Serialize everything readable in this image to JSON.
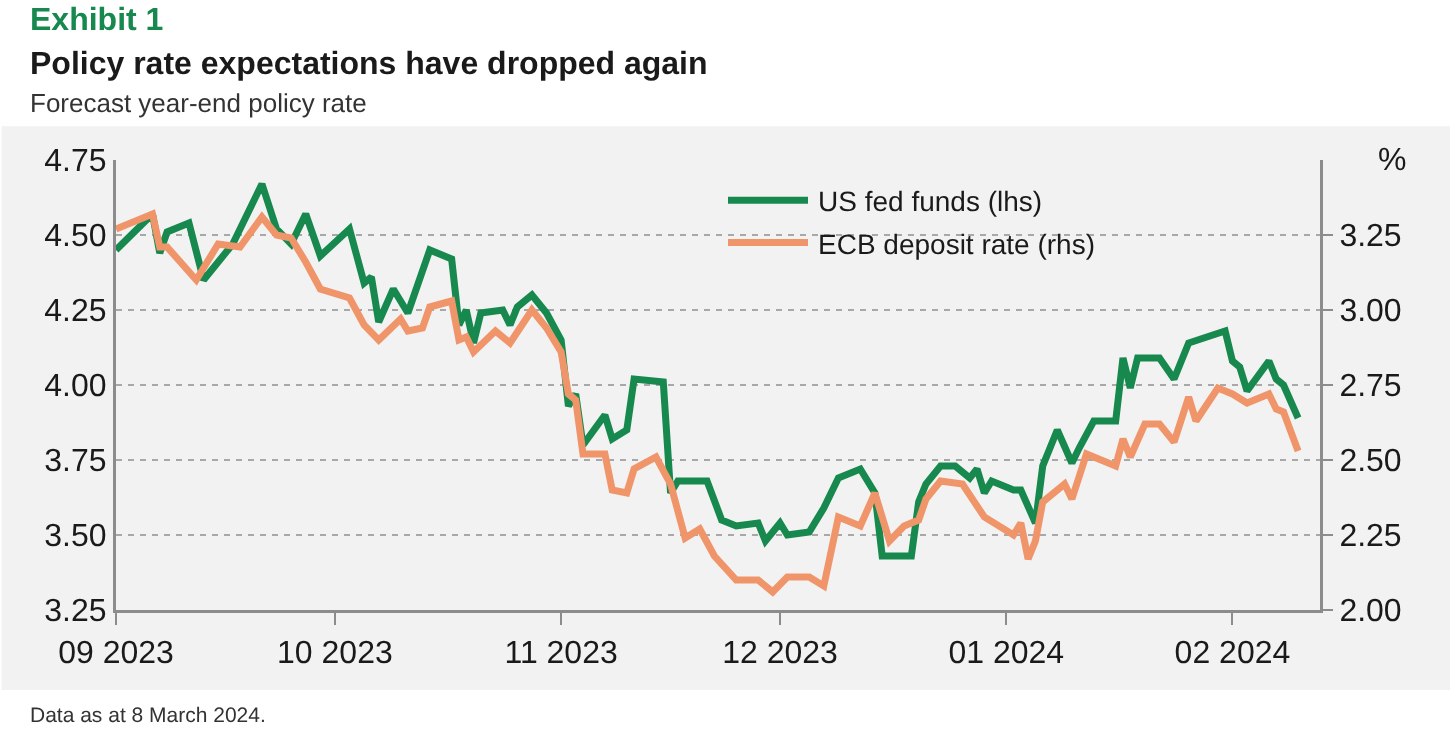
{
  "chart_data": {
    "type": "line",
    "title": "Policy rate expectations have dropped again",
    "subtitle": "Forecast year-end policy rate",
    "y2label": "%",
    "annotations": [
      "Exhibit 1",
      "Data as at 8 March 2024."
    ],
    "xlim": [
      "2023-09-01",
      "2024-02-13"
    ],
    "xticks": [
      {
        "value": "2023-09-01",
        "label": "09 2023"
      },
      {
        "value": "2023-10-01",
        "label": "10 2023"
      },
      {
        "value": "2023-11-01",
        "label": "11 2023"
      },
      {
        "value": "2023-12-01",
        "label": "12 2023"
      },
      {
        "value": "2024-01-01",
        "label": "01 2024"
      },
      {
        "value": "2024-02-01",
        "label": "02 2024"
      }
    ],
    "ylim": [
      3.25,
      4.75
    ],
    "yticks": [
      {
        "value": 3.25,
        "label": "3.25"
      },
      {
        "value": 3.5,
        "label": "3.50"
      },
      {
        "value": 3.75,
        "label": "3.75"
      },
      {
        "value": 4,
        "label": "4.00"
      },
      {
        "value": 4.25,
        "label": "4.25"
      },
      {
        "value": 4.5,
        "label": "4.50"
      },
      {
        "value": 4.75,
        "label": "4.75"
      }
    ],
    "y2lim": [
      2.0,
      3.5
    ],
    "y2ticks": [
      {
        "value": 2,
        "label": "2.00"
      },
      {
        "value": 2.25,
        "label": "2.25"
      },
      {
        "value": 2.5,
        "label": "2.50"
      },
      {
        "value": 2.75,
        "label": "2.75"
      },
      {
        "value": 3,
        "label": "3.00"
      },
      {
        "value": 3.25,
        "label": "3.25"
      }
    ],
    "grid": "y",
    "legend": "top",
    "line_style": "solid",
    "marker": "none",
    "series": [
      {
        "name": "US fed funds (lhs)",
        "color": "#17894f",
        "x": [
          "2023-09-01",
          "2023-09-06",
          "2023-09-07",
          "2023-09-08",
          "2023-09-11",
          "2023-09-13",
          "2023-09-17",
          "2023-09-18",
          "2023-09-21",
          "2023-09-23",
          "2023-09-25",
          "2023-09-27",
          "2023-09-29",
          "2023-10-03",
          "2023-10-05",
          "2023-10-06",
          "2023-10-07",
          "2023-10-09",
          "2023-10-11",
          "2023-10-14",
          "2023-10-17",
          "2023-10-18",
          "2023-10-19",
          "2023-10-20",
          "2023-10-21",
          "2023-10-24",
          "2023-10-25",
          "2023-10-26",
          "2023-10-28",
          "2023-10-30",
          "2023-11-01",
          "2023-11-02",
          "2023-11-03",
          "2023-11-04",
          "2023-11-07",
          "2023-11-08",
          "2023-11-10",
          "2023-11-11",
          "2023-11-15",
          "2023-11-16",
          "2023-11-17",
          "2023-11-21",
          "2023-11-23",
          "2023-11-25",
          "2023-11-28",
          "2023-11-29",
          "2023-12-01",
          "2023-12-02",
          "2023-12-05",
          "2023-12-07",
          "2023-12-09",
          "2023-12-12",
          "2023-12-14",
          "2023-12-15",
          "2023-12-19",
          "2023-12-20",
          "2023-12-21",
          "2023-12-23",
          "2023-12-25",
          "2023-12-27",
          "2023-12-28",
          "2023-12-29",
          "2023-12-30",
          "2024-01-02",
          "2024-01-03",
          "2024-01-05",
          "2024-01-06",
          "2024-01-08",
          "2024-01-10",
          "2024-01-11",
          "2024-01-13",
          "2024-01-16",
          "2024-01-17",
          "2024-01-18",
          "2024-01-19",
          "2024-01-22",
          "2024-01-24",
          "2024-01-26",
          "2024-01-31",
          "2024-02-01",
          "2024-02-02",
          "2024-02-03",
          "2024-02-06",
          "2024-02-07",
          "2024-02-08",
          "2024-02-10"
        ],
        "values": [
          4.45,
          4.57,
          4.44,
          4.51,
          4.54,
          4.35,
          4.47,
          4.52,
          4.67,
          4.52,
          4.47,
          4.57,
          4.43,
          4.52,
          4.34,
          4.36,
          4.21,
          4.32,
          4.24,
          4.45,
          4.42,
          4.2,
          4.25,
          4.14,
          4.24,
          4.25,
          4.2,
          4.26,
          4.3,
          4.24,
          4.15,
          3.93,
          3.97,
          3.8,
          3.9,
          3.82,
          3.85,
          4.02,
          4.01,
          3.64,
          3.68,
          3.68,
          3.55,
          3.53,
          3.54,
          3.48,
          3.54,
          3.5,
          3.51,
          3.59,
          3.69,
          3.72,
          3.64,
          3.43,
          3.43,
          3.61,
          3.67,
          3.73,
          3.73,
          3.69,
          3.72,
          3.64,
          3.68,
          3.65,
          3.65,
          3.54,
          3.73,
          3.85,
          3.74,
          3.79,
          3.88,
          3.88,
          4.09,
          3.99,
          4.09,
          4.09,
          4.02,
          4.14,
          4.18,
          4.08,
          4.06,
          3.98,
          4.08,
          4.02,
          4.0,
          3.89
        ]
      },
      {
        "name": "ECB deposit rate (rhs)",
        "color": "#f0956a",
        "axis": "y2",
        "x": [
          "2023-09-01",
          "2023-09-06",
          "2023-09-07",
          "2023-09-08",
          "2023-09-12",
          "2023-09-15",
          "2023-09-18",
          "2023-09-21",
          "2023-09-23",
          "2023-09-25",
          "2023-09-27",
          "2023-09-29",
          "2023-10-03",
          "2023-10-05",
          "2023-10-07",
          "2023-10-10",
          "2023-10-11",
          "2023-10-13",
          "2023-10-14",
          "2023-10-17",
          "2023-10-18",
          "2023-10-19",
          "2023-10-20",
          "2023-10-23",
          "2023-10-25",
          "2023-10-28",
          "2023-10-30",
          "2023-11-01",
          "2023-11-02",
          "2023-11-03",
          "2023-11-04",
          "2023-11-07",
          "2023-11-08",
          "2023-11-10",
          "2023-11-11",
          "2023-11-14",
          "2023-11-16",
          "2023-11-18",
          "2023-11-20",
          "2023-11-22",
          "2023-11-25",
          "2023-11-28",
          "2023-11-30",
          "2023-12-02",
          "2023-12-05",
          "2023-12-07",
          "2023-12-09",
          "2023-12-12",
          "2023-12-14",
          "2023-12-16",
          "2023-12-18",
          "2023-12-20",
          "2023-12-21",
          "2023-12-23",
          "2023-12-26",
          "2023-12-29",
          "2024-01-02",
          "2024-01-03",
          "2024-01-04",
          "2024-01-05",
          "2024-01-06",
          "2024-01-09",
          "2024-01-10",
          "2024-01-12",
          "2024-01-16",
          "2024-01-17",
          "2024-01-18",
          "2024-01-20",
          "2024-01-22",
          "2024-01-24",
          "2024-01-26",
          "2024-01-27",
          "2024-01-30",
          "2024-02-01",
          "2024-02-03",
          "2024-02-06",
          "2024-02-07",
          "2024-02-08",
          "2024-02-10"
        ],
        "values": [
          3.27,
          3.32,
          3.21,
          3.21,
          3.1,
          3.22,
          3.21,
          3.31,
          3.25,
          3.24,
          3.16,
          3.07,
          3.04,
          2.95,
          2.9,
          2.97,
          2.93,
          2.94,
          3.01,
          3.03,
          2.9,
          2.91,
          2.86,
          2.93,
          2.89,
          3.0,
          2.94,
          2.86,
          2.72,
          2.7,
          2.52,
          2.52,
          2.4,
          2.39,
          2.47,
          2.51,
          2.42,
          2.24,
          2.27,
          2.18,
          2.1,
          2.1,
          2.06,
          2.11,
          2.11,
          2.08,
          2.31,
          2.28,
          2.39,
          2.23,
          2.28,
          2.3,
          2.37,
          2.43,
          2.42,
          2.31,
          2.25,
          2.29,
          2.17,
          2.23,
          2.36,
          2.42,
          2.37,
          2.52,
          2.48,
          2.57,
          2.51,
          2.62,
          2.62,
          2.56,
          2.71,
          2.63,
          2.74,
          2.72,
          2.69,
          2.72,
          2.67,
          2.66,
          2.53
        ]
      }
    ]
  }
}
